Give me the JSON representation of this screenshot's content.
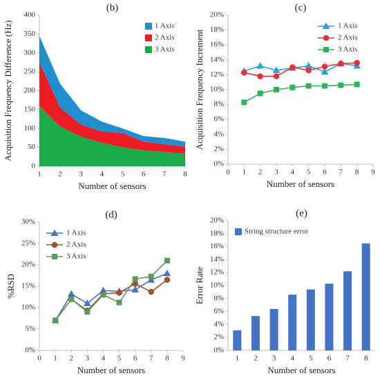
{
  "chart_data": [
    {
      "type": "area",
      "stacked": true,
      "title": "(b)",
      "x_label": "Number of sensors",
      "y_label": "Acquisition Frequency Difference (Hz)",
      "x": [
        1,
        2,
        3,
        4,
        5,
        6,
        7,
        8
      ],
      "series": [
        {
          "name": "1 Axis",
          "color": "#1f8fcf",
          "values": [
            70,
            63,
            38,
            26,
            12,
            15,
            17,
            13
          ]
        },
        {
          "name": "2 Axis",
          "color": "#ee1c25",
          "values": [
            115,
            50,
            32,
            30,
            38,
            23,
            20,
            19
          ]
        },
        {
          "name": "3 Axis",
          "color": "#1aab4b",
          "values": [
            160,
            105,
            78,
            62,
            50,
            42,
            38,
            33
          ]
        }
      ],
      "xlim": [
        1,
        8
      ],
      "xticks": [
        1,
        2,
        3,
        4,
        5,
        6,
        7,
        8
      ],
      "ylim": [
        0,
        400
      ],
      "yticks": [
        0,
        50,
        100,
        150,
        200,
        250,
        300,
        350,
        400
      ],
      "legend": "upper right",
      "grid": false
    },
    {
      "type": "line",
      "title": "(c)",
      "x_label": "Number of sensors",
      "y_label": "Acquisition Frequency Increment",
      "x": [
        1,
        2,
        3,
        4,
        5,
        6,
        7,
        8
      ],
      "series": [
        {
          "name": "1 Axis",
          "color": "#2e9fd6",
          "marker": "triangle",
          "values": [
            12.5,
            13.2,
            12.6,
            12.9,
            13.2,
            12.4,
            13.5,
            13.2
          ]
        },
        {
          "name": "2 Axis",
          "color": "#e8303a",
          "marker": "circle",
          "values": [
            12.3,
            11.8,
            11.8,
            13.0,
            12.6,
            13.1,
            13.5,
            13.6
          ]
        },
        {
          "name": "3 Axis",
          "color": "#2eb35a",
          "marker": "square",
          "values": [
            8.3,
            9.5,
            10.0,
            10.3,
            10.5,
            10.5,
            10.6,
            10.7
          ]
        }
      ],
      "xlim": [
        0,
        9
      ],
      "xticks": [
        0,
        1,
        2,
        3,
        4,
        5,
        6,
        7,
        8,
        9
      ],
      "ylim": [
        0,
        20
      ],
      "yticks": [
        {
          "value": 0,
          "label": "0%"
        },
        {
          "value": 2,
          "label": "2%"
        },
        {
          "value": 4,
          "label": "4%"
        },
        {
          "value": 6,
          "label": "6%"
        },
        {
          "value": 8,
          "label": "8%"
        },
        {
          "value": 10,
          "label": "10%"
        },
        {
          "value": 12,
          "label": "12%"
        },
        {
          "value": 14,
          "label": "14%"
        },
        {
          "value": 16,
          "label": "16%"
        },
        {
          "value": 18,
          "label": "18%"
        },
        {
          "value": 20,
          "label": "20%"
        }
      ],
      "legend": "upper right",
      "grid": false
    },
    {
      "type": "line",
      "title": "(d)",
      "x_label": "Number of sensors",
      "y_label": "%RSD",
      "x": [
        1,
        2,
        3,
        4,
        5,
        6,
        7,
        8
      ],
      "series": [
        {
          "name": "1 Axis",
          "color": "#4472c4",
          "marker": "triangle",
          "values": [
            7,
            13.2,
            11,
            14,
            13.8,
            14.2,
            16.5,
            18
          ]
        },
        {
          "name": "2 Axis",
          "color": "#a0522d",
          "marker": "circle",
          "values": [
            7,
            12,
            9.3,
            13.2,
            13.5,
            15.6,
            13.7,
            16.5
          ]
        },
        {
          "name": "3 Axis",
          "color": "#5a9a5a",
          "marker": "square",
          "values": [
            7,
            12,
            9,
            13,
            11.2,
            16.7,
            17.3,
            21
          ]
        }
      ],
      "xlim": [
        0,
        9
      ],
      "xticks": [
        0,
        1,
        2,
        3,
        4,
        5,
        6,
        7,
        8,
        9
      ],
      "ylim": [
        0,
        30
      ],
      "yticks": [
        {
          "value": 0,
          "label": "0%"
        },
        {
          "value": 5,
          "label": "5%"
        },
        {
          "value": 10,
          "label": "10%"
        },
        {
          "value": 15,
          "label": "15%"
        },
        {
          "value": 20,
          "label": "20%"
        },
        {
          "value": 25,
          "label": "25%"
        },
        {
          "value": 30,
          "label": "30%"
        }
      ],
      "legend": "upper left",
      "grid": false
    },
    {
      "type": "bar",
      "title": "(e)",
      "x_label": "Number of sensors",
      "y_label": "Error Rate",
      "categories": [
        "1",
        "2",
        "3",
        "4",
        "5",
        "6",
        "7",
        "8"
      ],
      "series": [
        {
          "name": "String structure error",
          "color": "#4472c4",
          "values": [
            3.1,
            5.3,
            6.4,
            8.6,
            9.4,
            10.3,
            12.2,
            16.5
          ]
        }
      ],
      "ylim": [
        0,
        20
      ],
      "yticks": [
        {
          "value": 0,
          "label": "0%"
        },
        {
          "value": 2,
          "label": "2%"
        },
        {
          "value": 4,
          "label": "4%"
        },
        {
          "value": 6,
          "label": "6%"
        },
        {
          "value": 8,
          "label": "8%"
        },
        {
          "value": 10,
          "label": "10%"
        },
        {
          "value": 12,
          "label": "12%"
        },
        {
          "value": 14,
          "label": "14%"
        },
        {
          "value": 16,
          "label": "16%"
        },
        {
          "value": 18,
          "label": "18%"
        },
        {
          "value": 20,
          "label": "20%"
        }
      ],
      "legend": "upper left",
      "grid": false
    }
  ]
}
